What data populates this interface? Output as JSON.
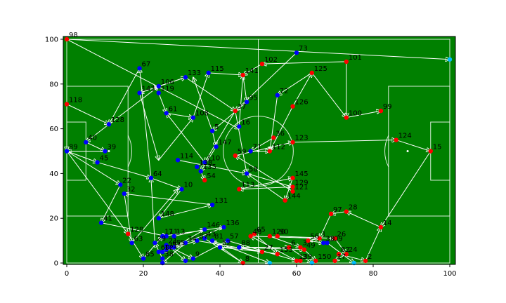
{
  "chart_data": {
    "type": "scatter",
    "title": "",
    "xlabel": "",
    "ylabel": "",
    "xlim": [
      0,
      100
    ],
    "ylim": [
      0,
      100
    ],
    "xticks": [
      0,
      20,
      40,
      60,
      80,
      100
    ],
    "yticks": [
      0,
      20,
      40,
      60,
      80,
      100
    ],
    "grid": false,
    "background": "pitch",
    "colors": {
      "pitch": "#008000",
      "pitch_lines": "#ffffff",
      "team_red": "#ff0000",
      "team_blue": "#0000ff",
      "highlight": "#00bfff",
      "pass_arrow": "#ffffff"
    },
    "points": [
      {
        "label": "98",
        "x": 0,
        "y": 100,
        "team": "red"
      },
      {
        "label": "73",
        "x": 60,
        "y": 94,
        "team": "blue"
      },
      {
        "label": "101",
        "x": 73,
        "y": 90,
        "team": "red"
      },
      {
        "label": "102",
        "x": 51,
        "y": 89,
        "team": "red"
      },
      {
        "label": "67",
        "x": 19,
        "y": 87,
        "team": "blue"
      },
      {
        "label": "115",
        "x": 37,
        "y": 85,
        "team": "blue"
      },
      {
        "label": "125",
        "x": 64,
        "y": 85,
        "team": "red"
      },
      {
        "label": "133",
        "x": 31,
        "y": 83,
        "team": "blue"
      },
      {
        "label": "141",
        "x": 46,
        "y": 84,
        "team": "red"
      },
      {
        "label": "106",
        "x": 24,
        "y": 79,
        "team": "blue"
      },
      {
        "label": "119",
        "x": 24,
        "y": 76,
        "team": "blue"
      },
      {
        "label": "143",
        "x": 19,
        "y": 76,
        "team": "blue"
      },
      {
        "label": "72",
        "x": 55,
        "y": 75,
        "team": "blue"
      },
      {
        "label": "95",
        "x": 47,
        "y": 72,
        "team": "blue"
      },
      {
        "label": "118",
        "x": 0,
        "y": 71,
        "team": "red"
      },
      {
        "label": "126",
        "x": 59,
        "y": 70,
        "team": "red"
      },
      {
        "label": "99",
        "x": 82,
        "y": 68,
        "team": "red"
      },
      {
        "label": "37",
        "x": 44,
        "y": 68,
        "team": "red"
      },
      {
        "label": "61",
        "x": 26,
        "y": 67,
        "team": "blue"
      },
      {
        "label": "108",
        "x": 33,
        "y": 65,
        "team": "blue"
      },
      {
        "label": "100",
        "x": 73,
        "y": 65,
        "team": "red"
      },
      {
        "label": "128",
        "x": 11,
        "y": 62,
        "team": "blue"
      },
      {
        "label": "16",
        "x": 45,
        "y": 61,
        "team": "blue"
      },
      {
        "label": "5",
        "x": 38,
        "y": 59,
        "team": "blue"
      },
      {
        "label": "36",
        "x": 54,
        "y": 56,
        "team": "red"
      },
      {
        "label": "124",
        "x": 86,
        "y": 55,
        "team": "red"
      },
      {
        "label": "123",
        "x": 59,
        "y": 54,
        "team": "red"
      },
      {
        "label": "147",
        "x": 39,
        "y": 52,
        "team": "blue"
      },
      {
        "label": "40",
        "x": 5,
        "y": 54,
        "team": "blue"
      },
      {
        "label": "39",
        "x": 10,
        "y": 50,
        "team": "blue"
      },
      {
        "label": "89",
        "x": 0,
        "y": 50,
        "team": "blue"
      },
      {
        "label": "15",
        "x": 95,
        "y": 50,
        "team": "red"
      },
      {
        "label": "71",
        "x": 48,
        "y": 50,
        "team": "blue"
      },
      {
        "label": "112",
        "x": 53,
        "y": 50,
        "team": "red"
      },
      {
        "label": "59",
        "x": 44,
        "y": 48,
        "team": "red"
      },
      {
        "label": "114",
        "x": 29,
        "y": 46,
        "team": "blue"
      },
      {
        "label": "110",
        "x": 36,
        "y": 45,
        "team": "blue"
      },
      {
        "label": "45",
        "x": 8,
        "y": 45,
        "team": "blue"
      },
      {
        "label": "138",
        "x": 34,
        "y": 43,
        "team": "blue"
      },
      {
        "label": "135",
        "x": 35,
        "y": 41,
        "team": "blue"
      },
      {
        "label": "58",
        "x": 47,
        "y": 40,
        "team": "blue"
      },
      {
        "label": "64",
        "x": 22,
        "y": 38,
        "team": "blue"
      },
      {
        "label": "54",
        "x": 36,
        "y": 37,
        "team": "red"
      },
      {
        "label": "145",
        "x": 59,
        "y": 38,
        "team": "red"
      },
      {
        "label": "22",
        "x": 14,
        "y": 35,
        "team": "blue"
      },
      {
        "label": "129",
        "x": 59,
        "y": 34,
        "team": "red"
      },
      {
        "label": "10",
        "x": 30,
        "y": 33,
        "team": "blue"
      },
      {
        "label": "113",
        "x": 45,
        "y": 33,
        "team": "red"
      },
      {
        "label": "121",
        "x": 59,
        "y": 32,
        "team": "red"
      },
      {
        "label": "32",
        "x": 15,
        "y": 31,
        "team": "blue"
      },
      {
        "label": "144",
        "x": 57,
        "y": 28,
        "team": "red"
      },
      {
        "label": "131",
        "x": 38,
        "y": 26,
        "team": "blue"
      },
      {
        "label": "28",
        "x": 73,
        "y": 23,
        "team": "red"
      },
      {
        "label": "97",
        "x": 69,
        "y": 22,
        "team": "red"
      },
      {
        "label": "148",
        "x": 24,
        "y": 20,
        "team": "blue"
      },
      {
        "label": "41",
        "x": 9,
        "y": 18,
        "team": "blue"
      },
      {
        "label": "14",
        "x": 82,
        "y": 16,
        "team": "red"
      },
      {
        "label": "136",
        "x": 41,
        "y": 16,
        "team": "blue"
      },
      {
        "label": "146",
        "x": 36,
        "y": 15,
        "team": "blue"
      },
      {
        "label": "128",
        "x": 16,
        "y": 13,
        "team": "red"
      },
      {
        "label": "111",
        "x": 25,
        "y": 12,
        "team": "blue"
      },
      {
        "label": "7",
        "x": 26,
        "y": 12,
        "team": "blue"
      },
      {
        "label": "13",
        "x": 28,
        "y": 12,
        "team": "blue"
      },
      {
        "label": "48",
        "x": 48,
        "y": 12,
        "team": "red"
      },
      {
        "label": "65",
        "x": 49,
        "y": 13,
        "team": "red"
      },
      {
        "label": "120",
        "x": 53,
        "y": 12,
        "team": "red"
      },
      {
        "label": "90",
        "x": 55,
        "y": 12,
        "team": "red"
      },
      {
        "label": "1",
        "x": 66,
        "y": 11,
        "team": "red"
      },
      {
        "label": "26",
        "x": 70,
        "y": 11,
        "team": "red"
      },
      {
        "label": "43",
        "x": 36,
        "y": 11,
        "team": "blue"
      },
      {
        "label": "87",
        "x": 34,
        "y": 10,
        "team": "blue"
      },
      {
        "label": "81",
        "x": 38,
        "y": 10,
        "team": "blue"
      },
      {
        "label": "57",
        "x": 42,
        "y": 10,
        "team": "blue"
      },
      {
        "label": "56",
        "x": 63,
        "y": 10,
        "team": "red"
      },
      {
        "label": "63",
        "x": 17,
        "y": 9,
        "team": "blue"
      },
      {
        "label": "29",
        "x": 23,
        "y": 9,
        "team": "blue"
      },
      {
        "label": "34",
        "x": 31,
        "y": 9,
        "team": "blue"
      },
      {
        "label": "33",
        "x": 67,
        "y": 9,
        "team": "blue"
      },
      {
        "label": "109",
        "x": 68,
        "y": 9,
        "team": "blue"
      },
      {
        "label": "21",
        "x": 26,
        "y": 8,
        "team": "blue"
      },
      {
        "label": "62",
        "x": 27,
        "y": 7,
        "team": "blue"
      },
      {
        "label": "55",
        "x": 28,
        "y": 7,
        "team": "blue"
      },
      {
        "label": "52",
        "x": 40,
        "y": 7,
        "team": "blue"
      },
      {
        "label": "88",
        "x": 45,
        "y": 7,
        "team": "blue"
      },
      {
        "label": "6",
        "x": 58,
        "y": 7,
        "team": "red"
      },
      {
        "label": "3",
        "x": 61,
        "y": 7,
        "team": "red"
      },
      {
        "label": "49",
        "x": 62,
        "y": 6,
        "team": "red"
      },
      {
        "label": "71b",
        "x": 26,
        "y": 6,
        "team": "blue",
        "display": "71"
      },
      {
        "label": "60",
        "x": 24,
        "y": 5,
        "team": "blue"
      },
      {
        "label": "12",
        "x": 25,
        "y": 5,
        "team": "blue"
      },
      {
        "label": "27",
        "x": 51,
        "y": 5,
        "team": "red"
      },
      {
        "label": "153",
        "x": 55,
        "y": 4,
        "team": "red"
      },
      {
        "label": "82",
        "x": 71,
        "y": 4,
        "team": "red"
      },
      {
        "label": "24",
        "x": 73,
        "y": 4,
        "team": "red"
      },
      {
        "label": "85",
        "x": 20,
        "y": 2,
        "team": "blue"
      },
      {
        "label": "38",
        "x": 25,
        "y": 2,
        "team": "blue"
      },
      {
        "label": "9",
        "x": 33,
        "y": 2,
        "team": "blue"
      },
      {
        "label": "8",
        "x": 46,
        "y": 0,
        "team": "red"
      },
      {
        "label": "139",
        "x": 60,
        "y": 1,
        "team": "red"
      },
      {
        "label": "2",
        "x": 61,
        "y": 1,
        "team": "red"
      },
      {
        "label": "150",
        "x": 65,
        "y": 1,
        "team": "red"
      },
      {
        "label": "17",
        "x": 70,
        "y": 1,
        "team": "red"
      },
      {
        "label": "2b",
        "x": 78,
        "y": 1,
        "team": "red",
        "display": "2"
      },
      {
        "label": "",
        "x": 25,
        "y": 0,
        "team": "blue"
      },
      {
        "label": "",
        "x": 31,
        "y": 1,
        "team": "blue"
      },
      {
        "label": "",
        "x": 53,
        "y": 0,
        "team": "highlight"
      },
      {
        "label": "",
        "x": 64,
        "y": 0,
        "team": "highlight"
      },
      {
        "label": "",
        "x": 75,
        "y": 0,
        "team": "highlight"
      },
      {
        "label": "",
        "x": 100,
        "y": 91,
        "team": "highlight"
      }
    ],
    "passes": [
      [
        0,
        100,
        100,
        91
      ],
      [
        0,
        100,
        45,
        60
      ],
      [
        73,
        90,
        73,
        65
      ],
      [
        73,
        90,
        51,
        89
      ],
      [
        73,
        65,
        82,
        68
      ],
      [
        64,
        85,
        73,
        65
      ],
      [
        64,
        85,
        55,
        75
      ],
      [
        59,
        70,
        64,
        85
      ],
      [
        51,
        89,
        46,
        84
      ],
      [
        60,
        94,
        44,
        68
      ],
      [
        37,
        85,
        46,
        84
      ],
      [
        31,
        83,
        44,
        68
      ],
      [
        31,
        83,
        19,
        76
      ],
      [
        24,
        79,
        31,
        83
      ],
      [
        19,
        87,
        11,
        62
      ],
      [
        19,
        76,
        24,
        79
      ],
      [
        24,
        76,
        26,
        67
      ],
      [
        46,
        84,
        47,
        72
      ],
      [
        47,
        72,
        38,
        59
      ],
      [
        55,
        75,
        53,
        50
      ],
      [
        59,
        70,
        53,
        50
      ],
      [
        44,
        68,
        36,
        45
      ],
      [
        0,
        71,
        0,
        50
      ],
      [
        0,
        71,
        11,
        62
      ],
      [
        5,
        54,
        10,
        50
      ],
      [
        11,
        62,
        5,
        54
      ],
      [
        10,
        50,
        0,
        50
      ],
      [
        0,
        50,
        8,
        45
      ],
      [
        0,
        50,
        14,
        35
      ],
      [
        0,
        50,
        16,
        13
      ],
      [
        8,
        45,
        22,
        38
      ],
      [
        59,
        54,
        86,
        55
      ],
      [
        86,
        55,
        95,
        50
      ],
      [
        95,
        50,
        82,
        16
      ],
      [
        82,
        16,
        73,
        23
      ],
      [
        73,
        23,
        69,
        22
      ],
      [
        69,
        22,
        66,
        11
      ],
      [
        48,
        50,
        53,
        50
      ],
      [
        44,
        48,
        59,
        54
      ],
      [
        54,
        56,
        48,
        50
      ],
      [
        29,
        46,
        47,
        40
      ],
      [
        35,
        41,
        36,
        37
      ],
      [
        38,
        59,
        39,
        52
      ],
      [
        39,
        52,
        35,
        41
      ],
      [
        47,
        40,
        59,
        34
      ],
      [
        45,
        33,
        59,
        38
      ],
      [
        59,
        38,
        57,
        28
      ],
      [
        59,
        34,
        45,
        33
      ],
      [
        59,
        32,
        44,
        48
      ],
      [
        57,
        28,
        47,
        40
      ],
      [
        30,
        33,
        24,
        20
      ],
      [
        22,
        38,
        30,
        33
      ],
      [
        38,
        26,
        15,
        31
      ],
      [
        24,
        20,
        38,
        26
      ],
      [
        14,
        35,
        9,
        18
      ],
      [
        9,
        18,
        26,
        12
      ],
      [
        15,
        31,
        17,
        9
      ],
      [
        16,
        13,
        20,
        2
      ],
      [
        41,
        16,
        25,
        5
      ],
      [
        36,
        15,
        28,
        7
      ],
      [
        25,
        12,
        41,
        16
      ],
      [
        28,
        12,
        36,
        15
      ],
      [
        48,
        12,
        66,
        11
      ],
      [
        49,
        13,
        55,
        4
      ],
      [
        53,
        12,
        61,
        7
      ],
      [
        55,
        12,
        70,
        11
      ],
      [
        66,
        11,
        63,
        10
      ],
      [
        70,
        11,
        73,
        4
      ],
      [
        36,
        11,
        46,
        0
      ],
      [
        34,
        10,
        51,
        5
      ],
      [
        38,
        10,
        53,
        0
      ],
      [
        42,
        10,
        60,
        1
      ],
      [
        63,
        10,
        67,
        9
      ],
      [
        17,
        9,
        29,
        33
      ],
      [
        23,
        9,
        22,
        38
      ],
      [
        31,
        9,
        25,
        0
      ],
      [
        68,
        9,
        75,
        0
      ],
      [
        26,
        8,
        33,
        2
      ],
      [
        27,
        7,
        31,
        1
      ],
      [
        40,
        7,
        58,
        7
      ],
      [
        45,
        7,
        62,
        6
      ],
      [
        58,
        7,
        64,
        0
      ],
      [
        62,
        6,
        65,
        1
      ],
      [
        24,
        5,
        31,
        9
      ],
      [
        25,
        5,
        34,
        10
      ],
      [
        51,
        5,
        40,
        7
      ],
      [
        55,
        4,
        45,
        7
      ],
      [
        71,
        4,
        78,
        1
      ],
      [
        73,
        4,
        70,
        1
      ],
      [
        20,
        2,
        25,
        12
      ],
      [
        25,
        2,
        23,
        9
      ],
      [
        33,
        2,
        42,
        10
      ],
      [
        46,
        0,
        38,
        10
      ],
      [
        60,
        1,
        48,
        12
      ],
      [
        78,
        1,
        82,
        16
      ],
      [
        36,
        45,
        26,
        67
      ],
      [
        26,
        67,
        33,
        65
      ],
      [
        33,
        65,
        37,
        85
      ],
      [
        38,
        59,
        33,
        83
      ],
      [
        19,
        76,
        24,
        46
      ],
      [
        24,
        46,
        33,
        65
      ],
      [
        11,
        62,
        24,
        79
      ],
      [
        22,
        38,
        19,
        87
      ],
      [
        45,
        61,
        46,
        84
      ],
      [
        44,
        68,
        47,
        40
      ]
    ]
  }
}
